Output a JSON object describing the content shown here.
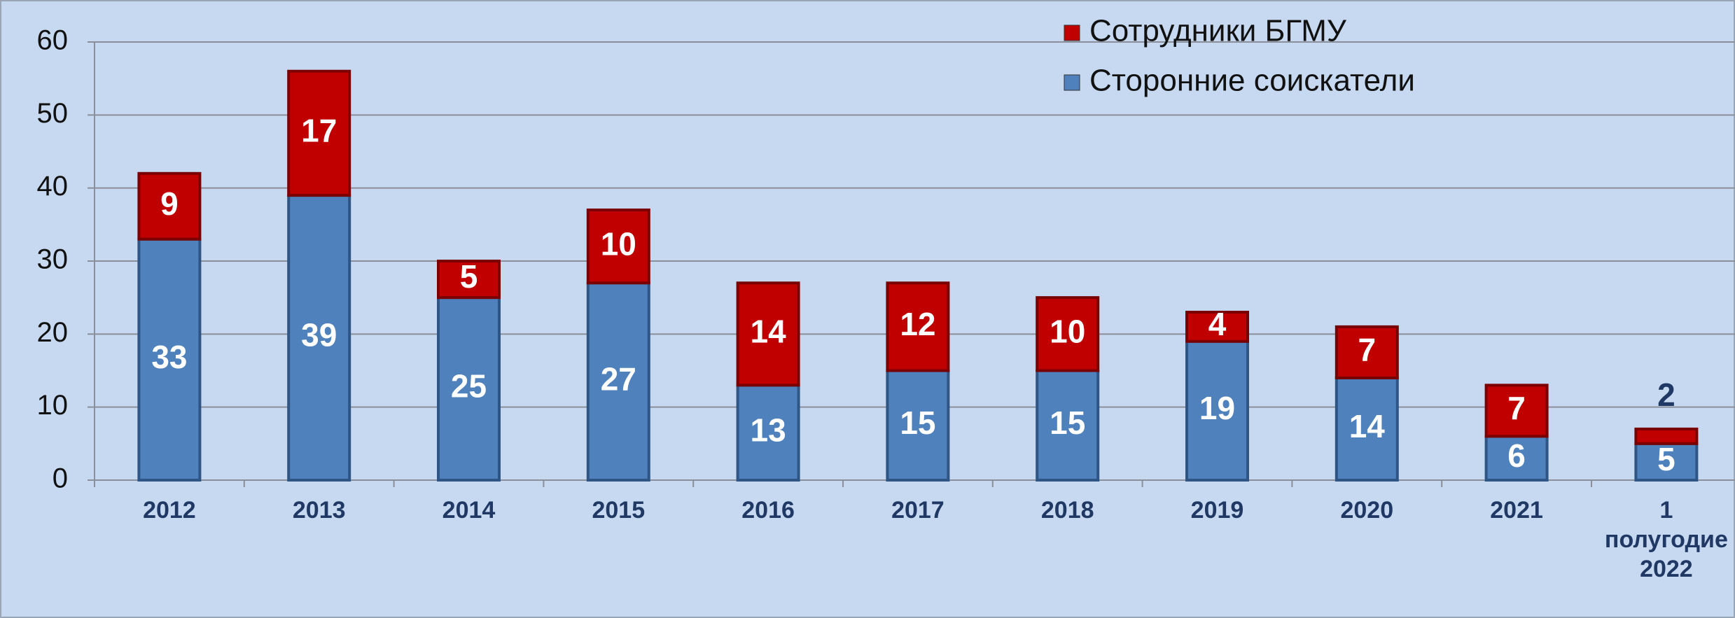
{
  "chart_data": {
    "type": "stacked_bar",
    "categories": [
      "2012",
      "2013",
      "2014",
      "2015",
      "2016",
      "2017",
      "2018",
      "2019",
      "2020",
      "2021",
      "1 полугодие 2022"
    ],
    "series": [
      {
        "name": "Сторонние соискатели",
        "color": "#4f81bd",
        "values": [
          33,
          39,
          25,
          27,
          13,
          15,
          15,
          19,
          14,
          6,
          5
        ]
      },
      {
        "name": "Сотрудники БГМУ",
        "color": "#c00000",
        "values": [
          9,
          17,
          5,
          10,
          14,
          12,
          10,
          4,
          7,
          7,
          2
        ]
      }
    ],
    "ylim": [
      0,
      60
    ],
    "yticks": [
      0,
      10,
      20,
      30,
      40,
      50,
      60
    ],
    "grid": true,
    "legend": "top-right"
  }
}
